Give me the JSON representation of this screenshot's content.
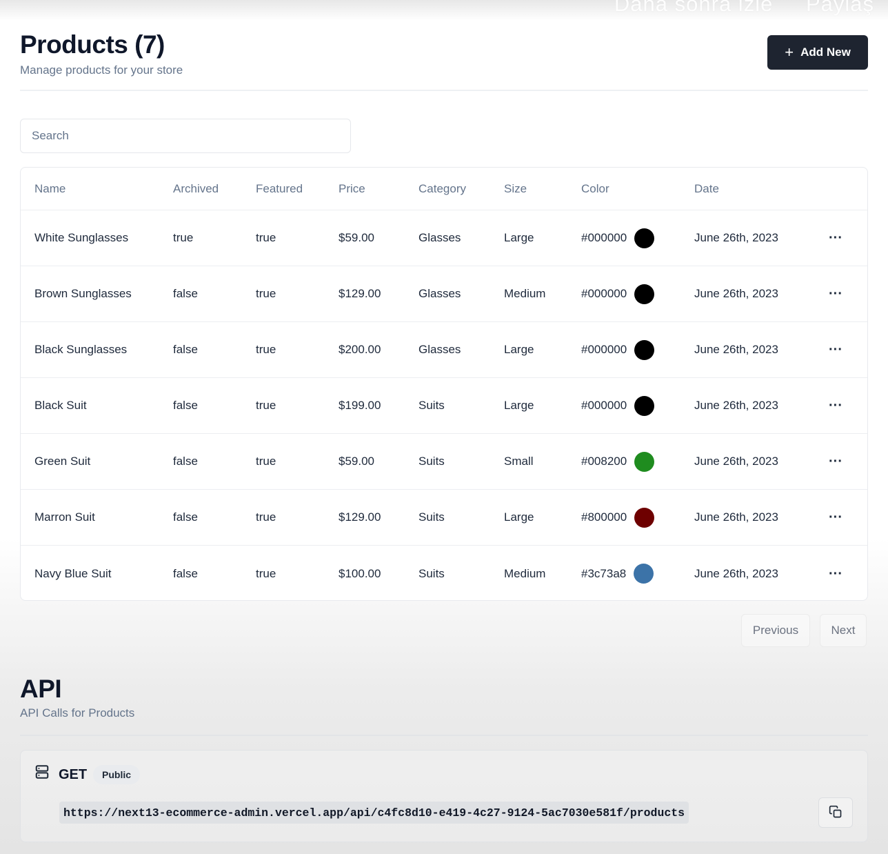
{
  "overlay": {
    "left": "Daha sonra izle",
    "right": "Paylaş"
  },
  "header": {
    "title": "Products (7)",
    "subtitle": "Manage products for your store",
    "add_label": "Add New"
  },
  "search": {
    "placeholder": "Search",
    "value": ""
  },
  "table": {
    "columns": [
      "Name",
      "Archived",
      "Featured",
      "Price",
      "Category",
      "Size",
      "Color",
      "Date"
    ],
    "rows": [
      {
        "name": "White Sunglasses",
        "archived": "true",
        "featured": "true",
        "price": "$59.00",
        "category": "Glasses",
        "size": "Large",
        "color": "#000000",
        "swatch": "#000000",
        "date": "June 26th, 2023"
      },
      {
        "name": "Brown Sunglasses",
        "archived": "false",
        "featured": "true",
        "price": "$129.00",
        "category": "Glasses",
        "size": "Medium",
        "color": "#000000",
        "swatch": "#000000",
        "date": "June 26th, 2023"
      },
      {
        "name": "Black Sunglasses",
        "archived": "false",
        "featured": "true",
        "price": "$200.00",
        "category": "Glasses",
        "size": "Large",
        "color": "#000000",
        "swatch": "#000000",
        "date": "June 26th, 2023"
      },
      {
        "name": "Black Suit",
        "archived": "false",
        "featured": "true",
        "price": "$199.00",
        "category": "Suits",
        "size": "Large",
        "color": "#000000",
        "swatch": "#000000",
        "date": "June 26th, 2023"
      },
      {
        "name": "Green Suit",
        "archived": "false",
        "featured": "true",
        "price": "$59.00",
        "category": "Suits",
        "size": "Small",
        "color": "#008200",
        "swatch": "#1f8c1f",
        "date": "June 26th, 2023"
      },
      {
        "name": "Marron Suit",
        "archived": "false",
        "featured": "true",
        "price": "$129.00",
        "category": "Suits",
        "size": "Large",
        "color": "#800000",
        "swatch": "#6e0000",
        "date": "June 26th, 2023"
      },
      {
        "name": "Navy Blue Suit",
        "archived": "false",
        "featured": "true",
        "price": "$100.00",
        "category": "Suits",
        "size": "Medium",
        "color": "#3c73a8",
        "swatch": "#3c73a8",
        "date": "June 26th, 2023"
      }
    ],
    "action_label": "···"
  },
  "pagination": {
    "previous": "Previous",
    "next": "Next"
  },
  "api": {
    "title": "API",
    "subtitle": "API Calls for Products",
    "method": "GET",
    "badge": "Public",
    "url": "https://next13-ecommerce-admin.vercel.app/api/c4fc8d10-e419-4c27-9124-5ac7030e581f/products"
  },
  "icons": {
    "add": "plus-icon",
    "server": "server-icon",
    "copy": "copy-icon",
    "row_action": "more-horizontal-icon"
  },
  "colors": {
    "primary_button": "#1e2430",
    "muted_text": "#64748b"
  }
}
